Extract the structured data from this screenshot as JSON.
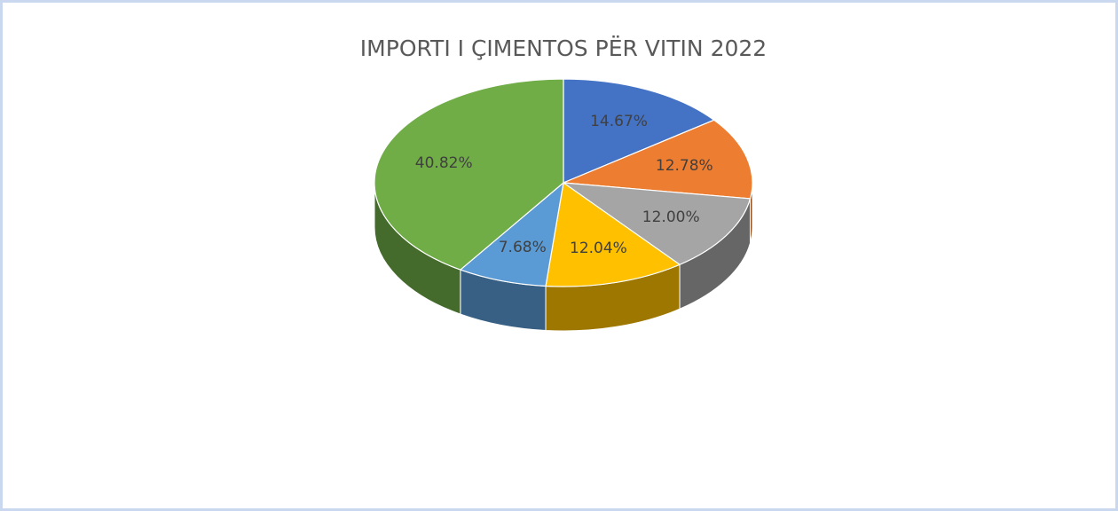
{
  "chart_data": {
    "type": "pie",
    "title": "IMPORTI I ÇIMENTOS PËR VITIN 2022",
    "values": [
      14.67,
      12.78,
      12.0,
      12.04,
      7.68,
      40.82
    ],
    "value_labels": [
      "14.67%",
      "12.78%",
      "12.00%",
      "12.04%",
      "7.68%",
      "40.82%"
    ],
    "colors": [
      "#4472c4",
      "#ed7d31",
      "#a5a5a5",
      "#ffc000",
      "#5b9bd5",
      "#70ad47"
    ]
  }
}
